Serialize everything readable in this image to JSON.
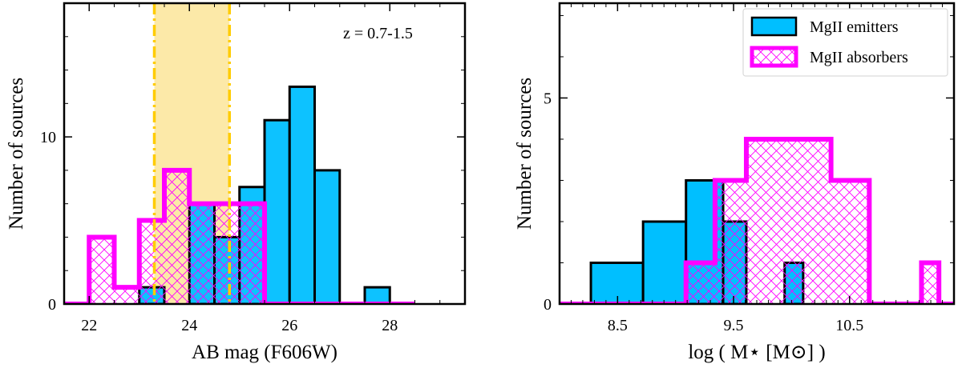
{
  "colors": {
    "emitter_fill": "#00bfff",
    "emitter_edge": "#000000",
    "absorber_edge": "#ff00ff",
    "band_fill": "#fce9a8",
    "band_edge": "#ffcc00"
  },
  "chart_data": [
    {
      "type": "histogram",
      "xlabel": "AB mag (F606W)",
      "ylabel": "Number of sources",
      "annotation": "z = 0.7-1.5",
      "xlim": [
        21.5,
        29.5
      ],
      "ylim": [
        0,
        18
      ],
      "xticks": [
        22,
        24,
        26,
        28
      ],
      "yticks": [
        0,
        10
      ],
      "xtick_labels": [
        "22",
        "24",
        "26",
        "28"
      ],
      "ytick_labels": [
        "0",
        "10"
      ],
      "highlight_band": {
        "x0": 23.3,
        "x1": 24.8
      },
      "series": [
        {
          "name": "MgII emitters",
          "style": "filled",
          "bins": [
            {
              "x0": 23.0,
              "x1": 23.5,
              "count": 1
            },
            {
              "x0": 24.0,
              "x1": 24.5,
              "count": 6
            },
            {
              "x0": 24.5,
              "x1": 25.0,
              "count": 4
            },
            {
              "x0": 25.0,
              "x1": 25.5,
              "count": 7
            },
            {
              "x0": 25.5,
              "x1": 26.0,
              "count": 11
            },
            {
              "x0": 26.0,
              "x1": 26.5,
              "count": 13
            },
            {
              "x0": 26.5,
              "x1": 27.0,
              "count": 8
            },
            {
              "x0": 27.5,
              "x1": 28.0,
              "count": 1
            }
          ]
        },
        {
          "name": "MgII absorbers",
          "style": "hatched",
          "bins": [
            {
              "x0": 21.5,
              "x1": 22.0,
              "count": 0
            },
            {
              "x0": 22.0,
              "x1": 22.5,
              "count": 4
            },
            {
              "x0": 22.5,
              "x1": 23.0,
              "count": 1
            },
            {
              "x0": 23.0,
              "x1": 23.5,
              "count": 5
            },
            {
              "x0": 23.5,
              "x1": 24.0,
              "count": 8
            },
            {
              "x0": 24.0,
              "x1": 24.5,
              "count": 6
            },
            {
              "x0": 24.5,
              "x1": 25.0,
              "count": 6
            },
            {
              "x0": 25.0,
              "x1": 25.5,
              "count": 6
            },
            {
              "x0": 25.5,
              "x1": 26.0,
              "count": 0
            },
            {
              "x0": 26.0,
              "x1": 28.5,
              "count": 0
            }
          ]
        }
      ]
    },
    {
      "type": "histogram",
      "xlabel": "log ( M⋆ [M⊙] )",
      "ylabel": "Number of sources",
      "xlim": [
        8.0,
        11.4
      ],
      "ylim": [
        0,
        7.3
      ],
      "xticks": [
        8.5,
        9.5,
        10.5
      ],
      "yticks": [
        0,
        5
      ],
      "xtick_labels": [
        "8.5",
        "9.5",
        "10.5"
      ],
      "ytick_labels": [
        "0",
        "5"
      ],
      "legend": {
        "position": "top-right",
        "entries": [
          "MgII emitters",
          "MgII absorbers"
        ]
      },
      "series": [
        {
          "name": "MgII emitters",
          "style": "filled",
          "bins": [
            {
              "x0": 8.27,
              "x1": 8.72,
              "count": 1
            },
            {
              "x0": 8.72,
              "x1": 9.09,
              "count": 2
            },
            {
              "x0": 9.09,
              "x1": 9.41,
              "count": 3
            },
            {
              "x0": 9.41,
              "x1": 9.61,
              "count": 2
            },
            {
              "x0": 9.94,
              "x1": 10.1,
              "count": 1
            }
          ]
        },
        {
          "name": "MgII absorbers",
          "style": "hatched",
          "bins": [
            {
              "x0": 8.0,
              "x1": 9.09,
              "count": 0
            },
            {
              "x0": 9.09,
              "x1": 9.34,
              "count": 1
            },
            {
              "x0": 9.34,
              "x1": 9.61,
              "count": 3
            },
            {
              "x0": 9.61,
              "x1": 10.34,
              "count": 4
            },
            {
              "x0": 10.34,
              "x1": 10.67,
              "count": 3
            },
            {
              "x0": 10.67,
              "x1": 11.12,
              "count": 0
            },
            {
              "x0": 11.12,
              "x1": 11.27,
              "count": 1
            },
            {
              "x0": 11.27,
              "x1": 11.4,
              "count": 0
            }
          ]
        }
      ]
    }
  ]
}
